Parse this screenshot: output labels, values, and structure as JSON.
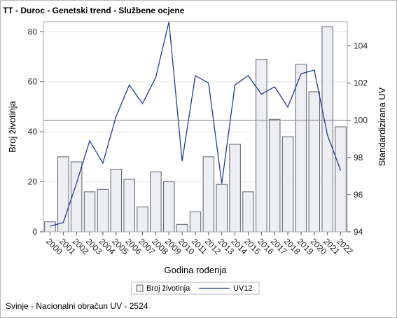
{
  "title": "TT - Duroc - Genetski trend - Službene ocjene",
  "footnote": "Svinje - Nacionalni obračun UV - 2524",
  "chart_data": {
    "type": "bar",
    "categories": [
      "2000",
      "2001",
      "2002",
      "2003",
      "2004",
      "2005",
      "2006",
      "2007",
      "2008",
      "2009",
      "2010",
      "2011",
      "2012",
      "2013",
      "2014",
      "2015",
      "2016",
      "2017",
      "2018",
      "2019",
      "2020",
      "2021",
      "2022"
    ],
    "xlabel": "Godina rođenja",
    "ylabel": "Broj životinja",
    "y2label": "Standardizirana UV",
    "ylim": [
      0,
      84
    ],
    "yticks": [
      0,
      20,
      40,
      60,
      80
    ],
    "y2lim": [
      94,
      105.3
    ],
    "y2ticks": [
      94,
      96,
      98,
      100,
      102,
      104
    ],
    "reference_line_y2": 100,
    "series": [
      {
        "name": "Broj životinja",
        "type": "bar",
        "axis": "left",
        "values": [
          4,
          30,
          28,
          16,
          17,
          25,
          21,
          10,
          24,
          20,
          3,
          8,
          30,
          19,
          35,
          16,
          69,
          45,
          38,
          67,
          56,
          82,
          42
        ]
      },
      {
        "name": "UV12",
        "type": "line",
        "axis": "right",
        "values": [
          94.3,
          94.5,
          96.6,
          98.9,
          97.7,
          100.2,
          101.9,
          100.9,
          102.3,
          105.3,
          97.8,
          102.4,
          102.0,
          96.6,
          101.9,
          102.4,
          101.4,
          101.8,
          100.7,
          102.5,
          102.7,
          99.2,
          97.3
        ]
      }
    ],
    "colors": {
      "bar_fill": "#edeff5",
      "bar_stroke": "#5f6269",
      "line": "#1f3e91",
      "refline": "#9a9a9a",
      "grid": "#e6e6e6"
    },
    "legend": {
      "placement": "bottom-center",
      "items": [
        "Broj životinja",
        "UV12"
      ]
    }
  }
}
